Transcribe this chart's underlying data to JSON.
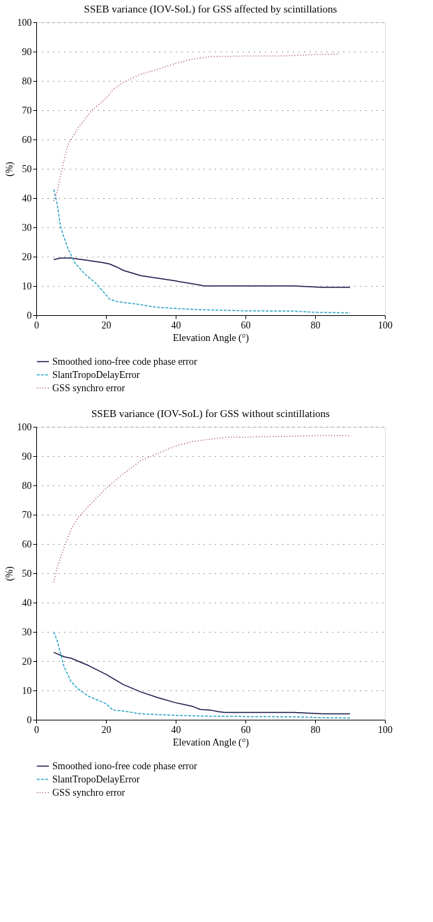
{
  "chart_data": [
    {
      "type": "line",
      "title": "SSEB variance (IOV-SoL) for GSS affected by scintillations",
      "xlabel": "Elevation Angle (°)",
      "ylabel": "(%)",
      "xlim": [
        0,
        100
      ],
      "xticks": [
        0,
        20,
        40,
        60,
        80,
        100
      ],
      "ylim": [
        0,
        100
      ],
      "yticks": [
        0,
        10,
        20,
        30,
        40,
        50,
        60,
        70,
        80,
        90,
        100
      ],
      "grid": "y",
      "legend": "bottom",
      "series": [
        {
          "name": "Smoothed iono-free code phase error",
          "color": "#1b1b4b",
          "line_style": "solid",
          "x": [
            5,
            7,
            10,
            15,
            19,
            21,
            23,
            25,
            30,
            35,
            40,
            47,
            48,
            60,
            74,
            82,
            90
          ],
          "values": [
            19,
            19.5,
            19.5,
            18.7,
            18,
            17.5,
            16.5,
            15.3,
            13.5,
            12.6,
            11.7,
            10.3,
            10,
            10,
            10,
            9.5,
            9.5
          ]
        },
        {
          "name": "SlantTropoDelayError",
          "color": "#2aa3c7",
          "line_style": "dashed",
          "x": [
            5,
            6,
            7,
            9,
            11,
            14,
            17,
            20,
            21,
            23,
            30,
            34,
            40,
            47,
            60,
            74,
            80,
            90
          ],
          "values": [
            43,
            38,
            30,
            23,
            18,
            14,
            11,
            7,
            5.5,
            4.7,
            3.6,
            2.8,
            2.3,
            1.9,
            1.5,
            1.4,
            1,
            0.8
          ]
        },
        {
          "name": "GSS synchro error",
          "color": "#a0365a",
          "line_style": "dotted",
          "x": [
            5,
            6,
            7,
            8,
            9,
            10,
            12,
            14,
            16,
            18,
            20,
            22,
            25,
            30,
            35,
            40,
            45,
            50,
            60,
            70,
            80,
            87
          ],
          "values": [
            39,
            42,
            48,
            53,
            58,
            60,
            64,
            67,
            70,
            72,
            74,
            77,
            79.5,
            82.3,
            84,
            86,
            87.5,
            88.3,
            88.5,
            88.5,
            89,
            89.2
          ]
        }
      ]
    },
    {
      "type": "line",
      "title": "SSEB variance (IOV-SoL) for GSS without scintillations",
      "xlabel": "Elevation Angle (°)",
      "ylabel": "(%)",
      "xlim": [
        0,
        100
      ],
      "xticks": [
        0,
        20,
        40,
        60,
        80,
        100
      ],
      "ylim": [
        0,
        100
      ],
      "yticks": [
        0,
        10,
        20,
        30,
        40,
        50,
        60,
        70,
        80,
        90,
        100
      ],
      "grid": "y",
      "legend": "bottom",
      "series": [
        {
          "name": "Smoothed iono-free code phase error",
          "color": "#1b1b4b",
          "line_style": "solid",
          "x": [
            5,
            8,
            10,
            15,
            20,
            25,
            30,
            35,
            40,
            45,
            47,
            50,
            52,
            54,
            60,
            74,
            82,
            90
          ],
          "values": [
            23,
            21.5,
            21,
            18.5,
            15.5,
            12,
            9.5,
            7.5,
            5.8,
            4.5,
            3.5,
            3.3,
            2.8,
            2.5,
            2.5,
            2.5,
            2,
            2
          ]
        },
        {
          "name": "SlantTropoDelayError",
          "color": "#2aa3c7",
          "line_style": "dashed",
          "x": [
            5,
            6,
            8,
            10,
            12,
            15,
            20,
            22,
            25,
            30,
            40,
            50,
            60,
            74,
            82,
            90
          ],
          "values": [
            30,
            27,
            18,
            13,
            10.5,
            8,
            5.5,
            3.3,
            3,
            2,
            1.5,
            1.2,
            1.1,
            1,
            0.7,
            0.6
          ]
        },
        {
          "name": "GSS synchro error",
          "color": "#a0365a",
          "line_style": "dotted",
          "x": [
            5,
            6,
            8,
            10,
            12,
            15,
            20,
            25,
            30,
            35,
            40,
            45,
            50,
            55,
            60,
            70,
            80,
            90
          ],
          "values": [
            47,
            52,
            59,
            65,
            69,
            73,
            79,
            84,
            88.5,
            91,
            93.5,
            95,
            95.8,
            96.5,
            96.5,
            96.7,
            97,
            97
          ]
        }
      ]
    }
  ]
}
